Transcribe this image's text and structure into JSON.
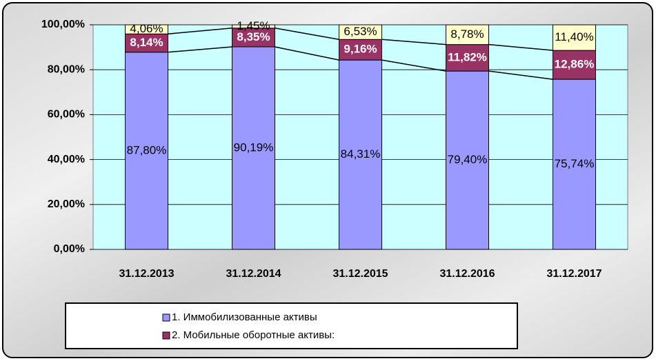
{
  "chart_data": {
    "type": "stacked_bar",
    "categories": [
      "31.12.2013",
      "31.12.2014",
      "31.12.2015",
      "31.12.2016",
      "31.12.2017"
    ],
    "series": [
      {
        "name": "1. Иммобилизованные активы",
        "color": "#9999ff",
        "values": [
          87.8,
          90.19,
          84.31,
          79.4,
          75.74
        ],
        "value_labels": [
          "87,80%",
          "90,19%",
          "84,31%",
          "79,40%",
          "75,74%"
        ]
      },
      {
        "name": "2. Мобильные оборотные активы:",
        "color": "#993366",
        "values": [
          8.14,
          8.35,
          9.16,
          11.82,
          12.86
        ],
        "value_labels": [
          "8,14%",
          "8,35%",
          "9,16%",
          "11,82%",
          "12,86%"
        ]
      },
      {
        "color": "#ffffcc",
        "values": [
          4.06,
          1.45,
          6.53,
          8.78,
          11.4
        ],
        "value_labels": [
          "4,06%",
          "1,45%",
          "6,53%",
          "8,78%",
          "11,40%"
        ]
      }
    ],
    "ylim": [
      0,
      100
    ],
    "yticks": [
      {
        "value": 0,
        "label": "0,00%"
      },
      {
        "value": 20,
        "label": "20,00%"
      },
      {
        "value": 40,
        "label": "40,00%"
      },
      {
        "value": 60,
        "label": "60,00%"
      },
      {
        "value": 80,
        "label": "80,00%"
      },
      {
        "value": 100,
        "label": "100,00%"
      }
    ],
    "grid": true
  }
}
